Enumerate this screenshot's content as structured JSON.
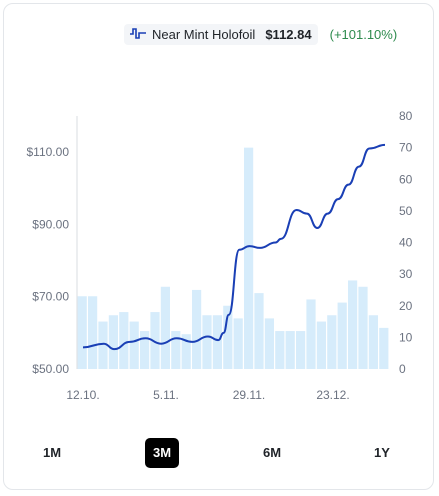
{
  "legend": {
    "icon": "line-series-icon",
    "name": "Near Mint Holofoil",
    "price": "$112.84",
    "change": "(+101.10%)",
    "change_color": "#2e8b4e"
  },
  "ranges": [
    {
      "label": "1M",
      "active": false
    },
    {
      "label": "3M",
      "active": true
    },
    {
      "label": "6M",
      "active": false
    },
    {
      "label": "1Y",
      "active": false
    }
  ],
  "chart_data": {
    "type": "bar+line",
    "title": "",
    "x_ticks": [
      "12.10.",
      "5.11.",
      "29.11.",
      "23.12."
    ],
    "y_left": {
      "ticks": [
        "$50.00",
        "$70.00",
        "$90.00",
        "$110.00"
      ],
      "min": 50,
      "max": 120
    },
    "y_right": {
      "ticks": [
        "0",
        "10",
        "20",
        "30",
        "40",
        "50",
        "60",
        "70",
        "80"
      ],
      "min": 0,
      "max": 80
    },
    "bars": {
      "name": "volume",
      "color": "#d6ecfb",
      "values": [
        23,
        23,
        15,
        17,
        18,
        15,
        12,
        18,
        26,
        12,
        11,
        25,
        17,
        17,
        20,
        16,
        70,
        24,
        16,
        12,
        12,
        12,
        22,
        15,
        17,
        21,
        28,
        26,
        17,
        13
      ]
    },
    "line": {
      "name": "Near Mint Holofoil",
      "color": "#1a3fb5",
      "points": [
        [
          0,
          56
        ],
        [
          4,
          57
        ],
        [
          6,
          55.5
        ],
        [
          9,
          57.5
        ],
        [
          12,
          58.5
        ],
        [
          15,
          57
        ],
        [
          18,
          58.5
        ],
        [
          21,
          57.5
        ],
        [
          24,
          59
        ],
        [
          26,
          58
        ],
        [
          27,
          60
        ],
        [
          28,
          65
        ],
        [
          30,
          83
        ],
        [
          32,
          84
        ],
        [
          34,
          83.5
        ],
        [
          37,
          85
        ],
        [
          38,
          86
        ],
        [
          41,
          94
        ],
        [
          43,
          93
        ],
        [
          45,
          89
        ],
        [
          47,
          93
        ],
        [
          49,
          97
        ],
        [
          51,
          101
        ],
        [
          53,
          106
        ],
        [
          55,
          111
        ],
        [
          58,
          112
        ]
      ]
    }
  }
}
